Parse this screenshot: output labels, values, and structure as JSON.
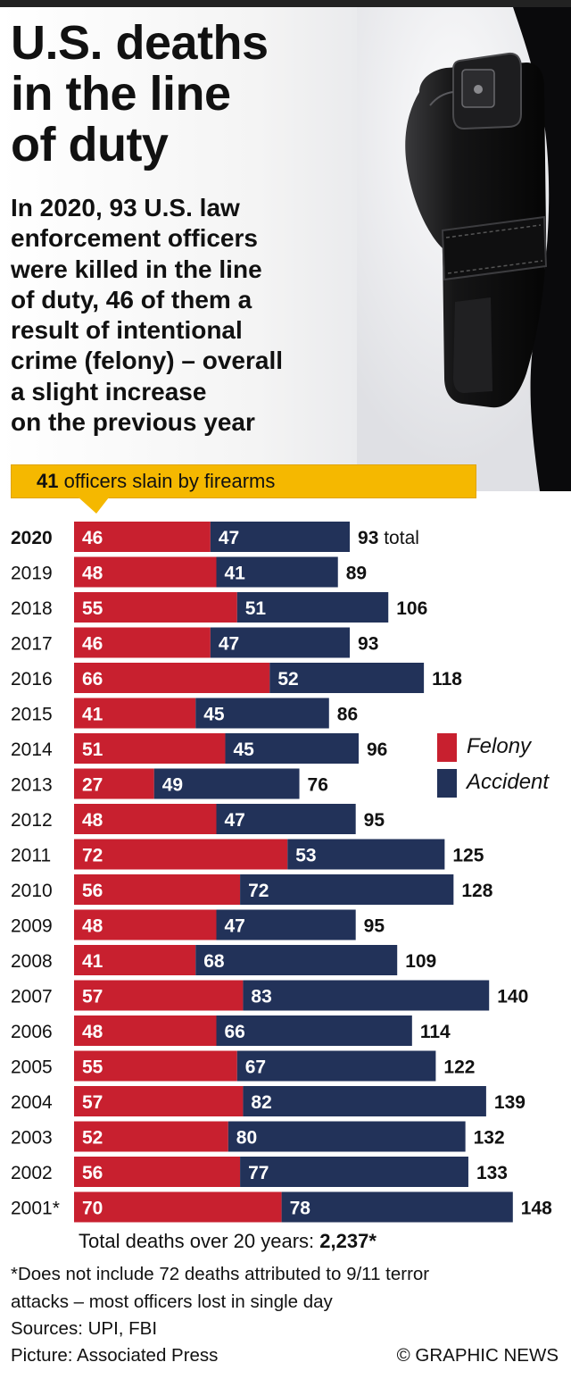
{
  "title_lines": [
    "U.S. deaths",
    "in the line",
    "of duty"
  ],
  "subtitle_lines": [
    "In 2020, 93 U.S. law",
    "enforcement officers",
    "were killed in the line",
    "of duty, 46 of them a",
    "result of intentional",
    "crime (felony) – overall",
    "a slight increase",
    "on the previous year"
  ],
  "callout": {
    "number": "41",
    "text": " officers slain by firearms"
  },
  "legend": {
    "felony": {
      "label": "Felony",
      "color": "#c8202f"
    },
    "accident": {
      "label": "Accident",
      "color": "#223259"
    }
  },
  "total_suffix": "total",
  "chart_data": {
    "type": "bar",
    "orientation": "horizontal",
    "stacked": true,
    "categories": [
      "2020",
      "2019",
      "2018",
      "2017",
      "2016",
      "2015",
      "2014",
      "2013",
      "2012",
      "2011",
      "2010",
      "2009",
      "2008",
      "2007",
      "2006",
      "2005",
      "2004",
      "2003",
      "2002",
      "2001*"
    ],
    "series": [
      {
        "name": "Felony",
        "color": "#c8202f",
        "values": [
          46,
          48,
          55,
          46,
          66,
          41,
          51,
          27,
          48,
          72,
          56,
          48,
          41,
          57,
          48,
          55,
          57,
          52,
          56,
          70
        ]
      },
      {
        "name": "Accident",
        "color": "#223259",
        "values": [
          47,
          41,
          51,
          47,
          52,
          45,
          45,
          49,
          47,
          53,
          72,
          47,
          68,
          83,
          66,
          67,
          82,
          80,
          77,
          78
        ]
      }
    ],
    "totals": [
      93,
      89,
      106,
      93,
      118,
      86,
      96,
      76,
      95,
      125,
      128,
      95,
      109,
      140,
      114,
      122,
      139,
      132,
      133,
      148
    ],
    "legend_position": "right",
    "grid": false
  },
  "footer": {
    "total_label": "Total deaths over 20 years: ",
    "total_value": "2,237*",
    "note_lines": [
      "*Does not include 72 deaths attributed to 9/11 terror",
      "attacks – most officers lost in single day"
    ],
    "sources": "Sources: UPI, FBI",
    "picture": "Picture: Associated Press",
    "credit": "© GRAPHIC NEWS"
  }
}
